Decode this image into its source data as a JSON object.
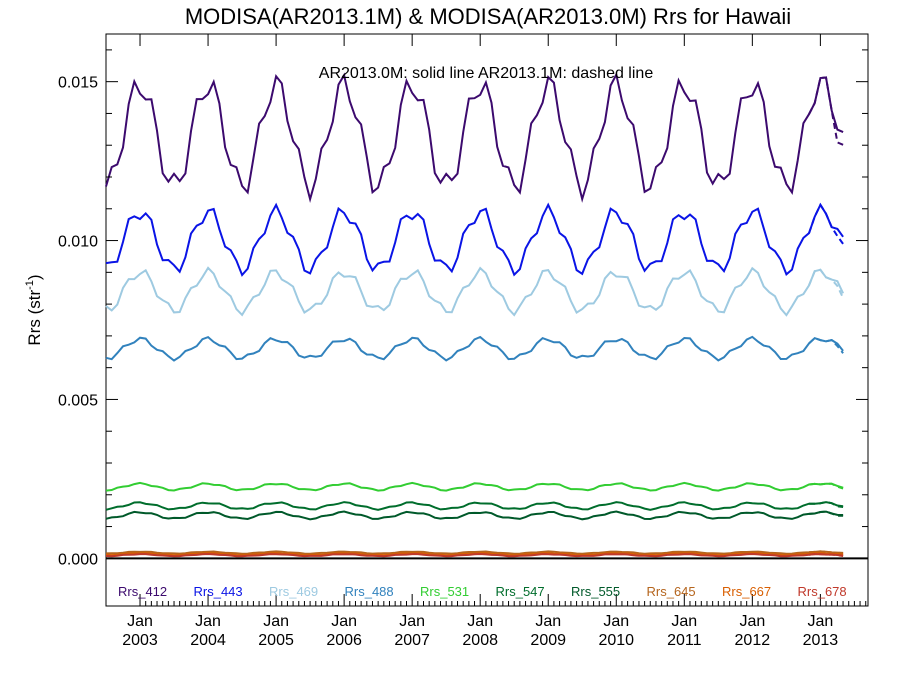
{
  "chart_data": {
    "type": "line",
    "title": "MODISA(AR2013.1M) & MODISA(AR2013.0M)  Rrs for Hawaii",
    "annotation": "AR2013.0M: solid line   AR2013.1M: dashed line",
    "ylabel_main": "Rrs (str",
    "ylabel_sup": "-1",
    "ylabel_close": ")",
    "xlim": [
      2002.5,
      2013.7
    ],
    "ylim": [
      -0.0015,
      0.0165
    ],
    "yticks": [
      {
        "value": 0.0,
        "label": "0.000"
      },
      {
        "value": 0.005,
        "label": "0.005"
      },
      {
        "value": 0.01,
        "label": "0.010"
      },
      {
        "value": 0.015,
        "label": "0.015"
      }
    ],
    "xticks": [
      {
        "value": 2003,
        "month": "Jan",
        "year": "2003"
      },
      {
        "value": 2004,
        "month": "Jan",
        "year": "2004"
      },
      {
        "value": 2005,
        "month": "Jan",
        "year": "2005"
      },
      {
        "value": 2006,
        "month": "Jan",
        "year": "2006"
      },
      {
        "value": 2007,
        "month": "Jan",
        "year": "2007"
      },
      {
        "value": 2008,
        "month": "Jan",
        "year": "2008"
      },
      {
        "value": 2009,
        "month": "Jan",
        "year": "2009"
      },
      {
        "value": 2010,
        "month": "Jan",
        "year": "2010"
      },
      {
        "value": 2011,
        "month": "Jan",
        "year": "2011"
      },
      {
        "value": 2012,
        "month": "Jan",
        "year": "2012"
      },
      {
        "value": 2013,
        "month": "Jan",
        "year": "2013"
      }
    ],
    "series": [
      {
        "name": "Rrs_412",
        "color": "#3c0a6e",
        "base": 0.0133,
        "amp": 0.0016,
        "trend_end": 0.0012
      },
      {
        "name": "Rrs_443",
        "color": "#0a14e6",
        "base": 0.01,
        "amp": 0.0009,
        "trend_end": 0.0008
      },
      {
        "name": "Rrs_469",
        "color": "#9ecae1",
        "base": 0.0084,
        "amp": 0.0006,
        "trend_end": 0.0005
      },
      {
        "name": "Rrs_488",
        "color": "#3182bd",
        "base": 0.0066,
        "amp": 0.0003,
        "trend_end": 0.0003
      },
      {
        "name": "Rrs_531",
        "color": "#32cd32",
        "base": 0.00225,
        "amp": 0.0001,
        "trend_end": 0.0001
      },
      {
        "name": "Rrs_547",
        "color": "#006d2c",
        "base": 0.00165,
        "amp": 0.0001,
        "trend_end": 0.0001
      },
      {
        "name": "Rrs_555",
        "color": "#00592a",
        "base": 0.00135,
        "amp": 0.0001,
        "trend_end": 0.0001
      },
      {
        "name": "Rrs_645",
        "color": "#b5651d",
        "base": 0.00018,
        "amp": 3e-05,
        "trend_end": 0.0
      },
      {
        "name": "Rrs_667",
        "color": "#d95f02",
        "base": 0.00013,
        "amp": 3e-05,
        "trend_end": 0.0
      },
      {
        "name": "Rrs_678",
        "color": "#c0392b",
        "base": 0.0001,
        "amp": 3e-05,
        "trend_end": 0.0
      }
    ],
    "grid": false,
    "legend": "bottom inside plot"
  }
}
